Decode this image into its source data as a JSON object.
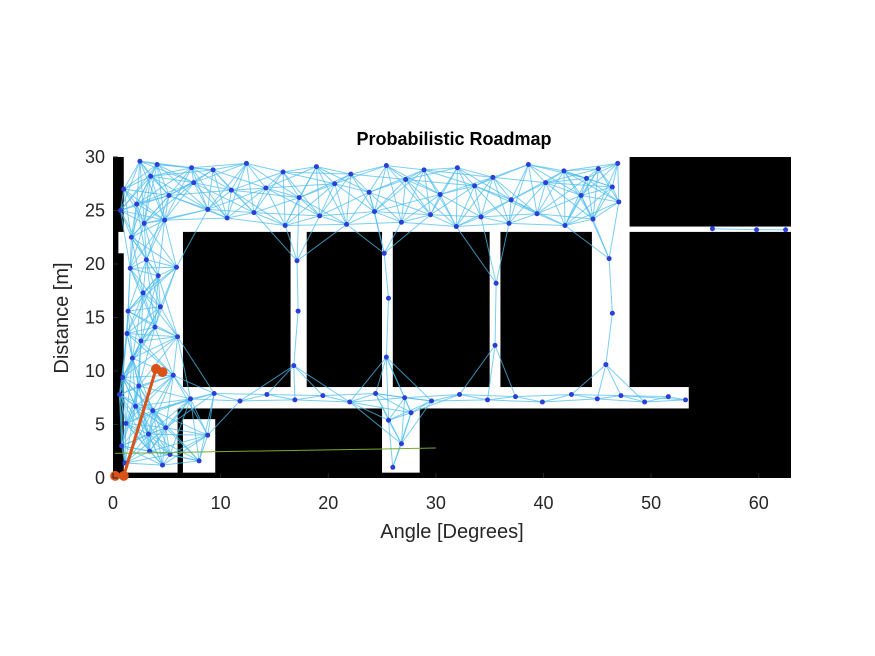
{
  "chart_data": {
    "type": "scatter",
    "title": "Probabilistic Roadmap",
    "xlabel": "Angle [Degrees]",
    "ylabel": "Distance [m]",
    "xlim": [
      0,
      63
    ],
    "ylim": [
      0,
      30
    ],
    "xticks": [
      0,
      10,
      20,
      30,
      40,
      50,
      60
    ],
    "yticks": [
      0,
      5,
      10,
      15,
      20,
      25,
      30
    ],
    "grid": false,
    "colors": {
      "obstacle": "#000000",
      "free": "#ffffff",
      "edge": "#4dbeee",
      "node": "#2b3fd6",
      "path": "#d95319",
      "track": "#77ac30"
    },
    "path": [
      [
        0.2,
        0.2
      ],
      [
        1.0,
        0.2
      ],
      [
        4.0,
        10.2
      ],
      [
        4.6,
        9.9
      ]
    ],
    "track": [
      [
        0.2,
        2.3
      ],
      [
        30.0,
        2.8
      ]
    ],
    "free_regions": [
      [
        1.0,
        0.5,
        6.0,
        30.0
      ],
      [
        6.0,
        23.0,
        47.5,
        30.0
      ],
      [
        6.0,
        6.5,
        48.0,
        8.5
      ],
      [
        5.5,
        6.5,
        6.5,
        30.0
      ],
      [
        44.5,
        6.5,
        48.0,
        30.0
      ],
      [
        25.0,
        0.5,
        28.5,
        8.0
      ],
      [
        6.5,
        0.5,
        9.5,
        5.5
      ],
      [
        47.5,
        6.5,
        53.5,
        8.5
      ],
      [
        47.5,
        23.0,
        63.0,
        23.5
      ],
      [
        16.5,
        7.0,
        18.0,
        23.5
      ],
      [
        35.0,
        7.0,
        36.0,
        23.5
      ],
      [
        25.0,
        7.0,
        26.0,
        23.5
      ],
      [
        0.5,
        21.0,
        4.0,
        23.0
      ]
    ],
    "nodes": [
      [
        0.8,
        3.0
      ],
      [
        1.2,
        5.1
      ],
      [
        2.1,
        6.7
      ],
      [
        3.4,
        2.5
      ],
      [
        4.6,
        1.2
      ],
      [
        0.9,
        9.4
      ],
      [
        1.8,
        11.2
      ],
      [
        2.6,
        12.8
      ],
      [
        3.9,
        14.1
      ],
      [
        1.4,
        15.6
      ],
      [
        2.8,
        17.3
      ],
      [
        4.2,
        18.9
      ],
      [
        3.1,
        20.4
      ],
      [
        1.7,
        22.5
      ],
      [
        4.8,
        24.1
      ],
      [
        2.2,
        25.6
      ],
      [
        1.0,
        27.0
      ],
      [
        3.5,
        28.2
      ],
      [
        4.1,
        29.3
      ],
      [
        5.2,
        26.4
      ],
      [
        0.6,
        7.8
      ],
      [
        2.4,
        8.6
      ],
      [
        3.7,
        6.3
      ],
      [
        4.9,
        4.7
      ],
      [
        5.3,
        2.2
      ],
      [
        1.6,
        19.6
      ],
      [
        2.9,
        23.8
      ],
      [
        1.3,
        13.5
      ],
      [
        4.4,
        16.0
      ],
      [
        0.7,
        25.0
      ],
      [
        7.5,
        27.6
      ],
      [
        9.3,
        28.8
      ],
      [
        11.0,
        26.9
      ],
      [
        12.4,
        29.4
      ],
      [
        14.2,
        27.1
      ],
      [
        15.8,
        28.6
      ],
      [
        17.3,
        26.2
      ],
      [
        18.9,
        29.1
      ],
      [
        20.6,
        27.5
      ],
      [
        22.1,
        28.4
      ],
      [
        23.8,
        26.7
      ],
      [
        25.4,
        29.2
      ],
      [
        27.2,
        27.9
      ],
      [
        28.9,
        28.8
      ],
      [
        30.4,
        26.5
      ],
      [
        32.0,
        29.0
      ],
      [
        33.6,
        27.3
      ],
      [
        35.3,
        28.1
      ],
      [
        37.0,
        26.0
      ],
      [
        38.6,
        29.3
      ],
      [
        40.2,
        27.6
      ],
      [
        41.9,
        28.7
      ],
      [
        43.5,
        26.4
      ],
      [
        45.1,
        28.9
      ],
      [
        46.4,
        27.2
      ],
      [
        8.8,
        25.1
      ],
      [
        10.6,
        24.3
      ],
      [
        13.1,
        24.8
      ],
      [
        16.0,
        23.6
      ],
      [
        19.2,
        24.5
      ],
      [
        21.7,
        23.7
      ],
      [
        24.3,
        24.9
      ],
      [
        26.8,
        23.9
      ],
      [
        29.5,
        24.6
      ],
      [
        31.9,
        23.5
      ],
      [
        34.2,
        24.4
      ],
      [
        36.8,
        23.8
      ],
      [
        39.4,
        24.7
      ],
      [
        42.0,
        23.6
      ],
      [
        44.6,
        24.2
      ],
      [
        7.2,
        7.4
      ],
      [
        9.4,
        7.9
      ],
      [
        11.8,
        7.2
      ],
      [
        14.3,
        7.8
      ],
      [
        16.9,
        7.3
      ],
      [
        19.5,
        7.7
      ],
      [
        22.0,
        7.1
      ],
      [
        24.4,
        7.9
      ],
      [
        27.1,
        7.5
      ],
      [
        29.6,
        7.2
      ],
      [
        32.2,
        7.8
      ],
      [
        34.8,
        7.3
      ],
      [
        37.4,
        7.6
      ],
      [
        39.9,
        7.1
      ],
      [
        42.6,
        7.8
      ],
      [
        45.0,
        7.4
      ],
      [
        47.2,
        7.7
      ],
      [
        49.4,
        7.1
      ],
      [
        51.6,
        7.6
      ],
      [
        53.2,
        7.3
      ],
      [
        26.0,
        1.0
      ],
      [
        26.8,
        3.2
      ],
      [
        25.6,
        5.4
      ],
      [
        27.7,
        6.1
      ],
      [
        8.0,
        1.6
      ],
      [
        8.8,
        4.0
      ],
      [
        16.8,
        10.5
      ],
      [
        17.2,
        15.6
      ],
      [
        17.1,
        20.3
      ],
      [
        25.4,
        11.3
      ],
      [
        25.6,
        16.8
      ],
      [
        25.2,
        21.0
      ],
      [
        35.5,
        12.4
      ],
      [
        35.6,
        18.2
      ],
      [
        45.8,
        10.6
      ],
      [
        46.4,
        15.4
      ],
      [
        46.1,
        20.5
      ],
      [
        47.0,
        25.8
      ],
      [
        55.7,
        23.3
      ],
      [
        59.8,
        23.2
      ],
      [
        62.5,
        23.2
      ],
      [
        6.0,
        13.2
      ],
      [
        5.9,
        19.7
      ],
      [
        2.5,
        29.6
      ],
      [
        7.3,
        29.0
      ],
      [
        44.0,
        28.0
      ],
      [
        46.9,
        29.4
      ],
      [
        5.6,
        9.6
      ],
      [
        3.3,
        4.1
      ],
      [
        1.1,
        1.4
      ]
    ]
  }
}
